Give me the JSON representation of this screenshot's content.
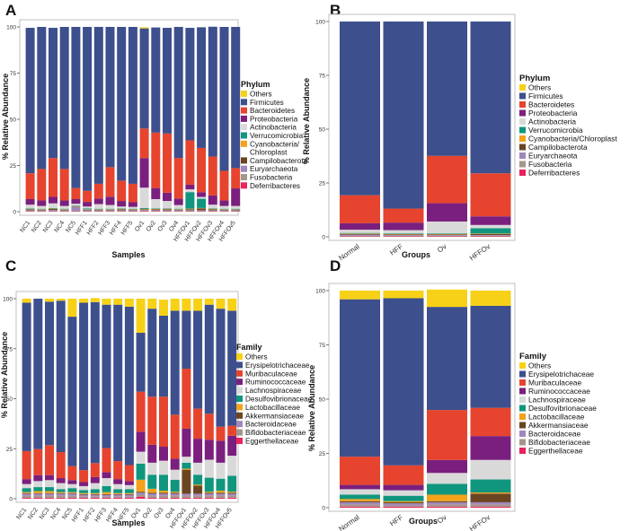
{
  "colors": {
    "Others": "#F7D117",
    "Firmicutes": "#3D4F8C",
    "Bacteroidetes": "#E6442E",
    "Proteobacteria": "#7B1F7E",
    "Actinobacteria": "#D9D9D9",
    "Verrucomicrobia": "#10967E",
    "Cyanobacteria/Chloroplast": "#F2A31B",
    "Campilobacterota": "#6B4521",
    "Euryarchaeota": "#A087BC",
    "Fusobacteria": "#A4968A",
    "Deferribacteres": "#E8235D",
    "Erysipelotrichaceae": "#3D4F8C",
    "Muribaculaceae": "#E6442E",
    "Ruminococcaceae": "#7B1F7E",
    "Lachnospiraceae": "#D9D9D9",
    "Desulfovibrionaceae": "#10967E",
    "Lactobacillaceae": "#F2A31B",
    "Akkermansiaceae": "#6B4521",
    "Bacteroidaceae": "#A087BC",
    "Bifidobacteriaceae": "#A4968A",
    "Eggerthellaceae": "#E8235D"
  },
  "chart_data": [
    {
      "panel": "A",
      "type": "bar",
      "stacked": true,
      "xlabel": "Samples",
      "ylabel": "% Relative Abundance",
      "ylim": [
        0,
        100
      ],
      "yticks": [
        "0",
        "25",
        "50",
        "75",
        "100"
      ],
      "legend_title": "Phylum",
      "legend": [
        "Others",
        "Firmicutes",
        "Bacteroidetes",
        "Proteobacteria",
        "Actinobacteria",
        "Verrucomicrobia",
        "Cyanobacteria/",
        "Chloroplast",
        "Campilobacterota",
        "Euryarchaeota",
        "Fusobacteria",
        "Deferribacteres"
      ],
      "legend_colors": [
        "Others",
        "Firmicutes",
        "Bacteroidetes",
        "Proteobacteria",
        "Actinobacteria",
        "Verrucomicrobia",
        "Cyanobacteria/Chloroplast",
        "",
        "Campilobacterota",
        "Euryarchaeota",
        "Fusobacteria",
        "Deferribacteres"
      ],
      "stack_order": [
        "Deferribacteres",
        "Fusobacteria",
        "Euryarchaeota",
        "Campilobacterota",
        "Cyanobacteria/Chloroplast",
        "Verrucomicrobia",
        "Actinobacteria",
        "Proteobacteria",
        "Bacteroidetes",
        "Firmicutes",
        "Others"
      ],
      "categories": [
        "NC1",
        "NC2",
        "NC3",
        "NC4",
        "NC5",
        "HFF1",
        "HFF2",
        "HFF3",
        "HFF4",
        "HFF5",
        "Ov1",
        "Ov2",
        "Ov3",
        "Ov4",
        "HFFOv1",
        "HFFOv2",
        "HFFOv3",
        "HFFOv4",
        "HFFOv5"
      ],
      "series": [
        {
          "name": "Deferribacteres",
          "values": [
            0.2,
            0.2,
            0.2,
            0.2,
            0.2,
            0.2,
            0.2,
            0.2,
            0.2,
            0.2,
            0.3,
            0.2,
            0.2,
            0.2,
            0.2,
            0.2,
            0.2,
            0.2,
            0.2
          ]
        },
        {
          "name": "Fusobacteria",
          "values": [
            0.3,
            0.3,
            0.3,
            0.3,
            0.3,
            0.3,
            0.3,
            0.3,
            0.3,
            0.3,
            0.3,
            0.3,
            0.3,
            0.3,
            0.3,
            0.3,
            0.3,
            0.3,
            0.3
          ]
        },
        {
          "name": "Euryarchaeota",
          "values": [
            0.3,
            0.3,
            0.5,
            0.3,
            2.0,
            0.3,
            0.3,
            0.3,
            0.3,
            0.3,
            0.3,
            0.3,
            0.3,
            0.3,
            0.3,
            0.3,
            0.3,
            0.3,
            0.3
          ]
        },
        {
          "name": "Campilobacterota",
          "values": [
            0.5,
            0.3,
            0.5,
            0.3,
            0.3,
            0.3,
            0.3,
            0.3,
            0.5,
            0.3,
            0.3,
            0.5,
            0.5,
            0.3,
            0.5,
            1.0,
            0.5,
            0.3,
            0.3
          ]
        },
        {
          "name": "Cyanobacteria/Chloroplast",
          "values": [
            0.2,
            0.2,
            0.2,
            0.2,
            0.2,
            0.2,
            0.2,
            0.2,
            0.2,
            0.2,
            0.3,
            0.2,
            0.2,
            0.2,
            0.3,
            0.2,
            0.2,
            0.2,
            0.2
          ]
        },
        {
          "name": "Verrucomicrobia",
          "values": [
            0.3,
            0.3,
            0.3,
            0.3,
            0.3,
            0.5,
            0.3,
            0.3,
            0.3,
            0.3,
            0.5,
            0.3,
            0.3,
            0.3,
            9.0,
            5.0,
            0.3,
            0.3,
            0.3
          ]
        },
        {
          "name": "Actinobacteria",
          "values": [
            2.0,
            1.5,
            2.5,
            1.5,
            1.0,
            1.0,
            2.5,
            2.0,
            1.0,
            1.0,
            11.0,
            5.0,
            4.0,
            2.0,
            1.5,
            1.0,
            2.0,
            1.5,
            1.5
          ]
        },
        {
          "name": "Proteobacteria",
          "values": [
            3.0,
            3.0,
            3.5,
            3.0,
            2.5,
            2.5,
            3.0,
            4.5,
            3.0,
            2.5,
            16.0,
            6.0,
            4.5,
            3.5,
            2.5,
            2.5,
            5.0,
            3.0,
            9.5
          ]
        },
        {
          "name": "Bacteroidetes",
          "values": [
            14.0,
            17.0,
            21.0,
            17.0,
            6.0,
            6.0,
            8.0,
            16.0,
            11.0,
            10.0,
            16.0,
            30.0,
            32.0,
            22.0,
            24.0,
            24.0,
            21.0,
            16.0,
            11.0
          ]
        },
        {
          "name": "Firmicutes",
          "values": [
            78.7,
            76.9,
            70.5,
            76.9,
            87.2,
            88.7,
            84.9,
            75.9,
            83.2,
            84.9,
            54.2,
            56.9,
            57.2,
            70.9,
            60.9,
            65.3,
            70.3,
            77.9,
            76.4
          ]
        },
        {
          "name": "Others",
          "values": [
            0.0,
            0.0,
            0.0,
            0.0,
            0.0,
            0.0,
            0.0,
            0.0,
            0.0,
            0.0,
            0.6,
            0.0,
            0.0,
            0.0,
            0.0,
            0.0,
            0.0,
            0.0,
            0.0
          ]
        }
      ]
    },
    {
      "panel": "B",
      "type": "bar",
      "stacked": true,
      "xlabel": "Groups",
      "ylabel": "% Relative Abundance",
      "ylim": [
        0,
        100
      ],
      "yticks": [
        "0",
        "25",
        "50",
        "75",
        "100"
      ],
      "legend_title": "Phylum",
      "legend": [
        "Others",
        "Firmicutes",
        "Bacteroidetes",
        "Proteobacteria",
        "Actinobacteria",
        "Verrucomicrobia",
        "Cyanobacteria/Chloroplast",
        "Campilobacterota",
        "Euryarchaeota",
        "Fusobacteria",
        "Deferribacteres"
      ],
      "legend_colors": [
        "Others",
        "Firmicutes",
        "Bacteroidetes",
        "Proteobacteria",
        "Actinobacteria",
        "Verrucomicrobia",
        "Cyanobacteria/Chloroplast",
        "Campilobacterota",
        "Euryarchaeota",
        "Fusobacteria",
        "Deferribacteres"
      ],
      "stack_order": [
        "Deferribacteres",
        "Fusobacteria",
        "Euryarchaeota",
        "Campilobacterota",
        "Cyanobacteria/Chloroplast",
        "Verrucomicrobia",
        "Actinobacteria",
        "Proteobacteria",
        "Bacteroidetes",
        "Firmicutes",
        "Others"
      ],
      "categories": [
        "Normal",
        "HFF",
        "Ov",
        "HFFOv"
      ],
      "series": [
        {
          "name": "Deferribacteres",
          "values": [
            0.2,
            0.2,
            0.2,
            0.2
          ]
        },
        {
          "name": "Fusobacteria",
          "values": [
            0.3,
            0.3,
            0.3,
            0.3
          ]
        },
        {
          "name": "Euryarchaeota",
          "values": [
            0.5,
            0.3,
            0.3,
            0.3
          ]
        },
        {
          "name": "Campilobacterota",
          "values": [
            0.3,
            0.3,
            0.3,
            0.5
          ]
        },
        {
          "name": "Cyanobacteria/Chloroplast",
          "values": [
            0.2,
            0.2,
            0.2,
            0.2
          ]
        },
        {
          "name": "Verrucomicrobia",
          "values": [
            0.3,
            0.3,
            0.3,
            2.5
          ]
        },
        {
          "name": "Actinobacteria",
          "values": [
            1.5,
            1.5,
            5.5,
            1.5
          ]
        },
        {
          "name": "Proteobacteria",
          "values": [
            3.0,
            3.5,
            8.5,
            4.0
          ]
        },
        {
          "name": "Bacteroidetes",
          "values": [
            13.0,
            6.5,
            22.0,
            20.0
          ]
        },
        {
          "name": "Firmicutes",
          "values": [
            80.7,
            86.9,
            62.4,
            70.5
          ]
        },
        {
          "name": "Others",
          "values": [
            0.0,
            0.0,
            0.0,
            0.0
          ]
        }
      ]
    },
    {
      "panel": "C",
      "type": "bar",
      "stacked": true,
      "xlabel": "Samples",
      "ylabel": "% Relative Abundance",
      "ylim": [
        0,
        100
      ],
      "yticks": [
        "0",
        "25",
        "50",
        "75",
        "100"
      ],
      "legend_title": "Family",
      "legend": [
        "Others",
        "Erysipelotrichaceae",
        "Muribaculaceae",
        "Ruminococcaceae",
        "Lachnospiraceae",
        "Desulfovibrionaceae",
        "Lactobacillaceae",
        "Akkermansiaceae",
        "Bacteroidaceae",
        "Bifidobacteriaceae",
        "Eggerthellaceae"
      ],
      "legend_colors": [
        "Others",
        "Erysipelotrichaceae",
        "Muribaculaceae",
        "Ruminococcaceae",
        "Lachnospiraceae",
        "Desulfovibrionaceae",
        "Lactobacillaceae",
        "Akkermansiaceae",
        "Bacteroidaceae",
        "Bifidobacteriaceae",
        "Eggerthellaceae"
      ],
      "stack_order": [
        "Eggerthellaceae",
        "Bifidobacteriaceae",
        "Bacteroidaceae",
        "Akkermansiaceae",
        "Lactobacillaceae",
        "Desulfovibrionaceae",
        "Lachnospiraceae",
        "Ruminococcaceae",
        "Muribaculaceae",
        "Erysipelotrichaceae",
        "Others"
      ],
      "categories": [
        "NC1",
        "NC2",
        "NC3",
        "NC4",
        "NC5",
        "HFF1",
        "HFF2",
        "HFF3",
        "HFF4",
        "HFF5",
        "Ov1",
        "Ov2",
        "Ov3",
        "Ov4",
        "HFFOv1",
        "HFFOv2",
        "HFFOv3",
        "HFFOv4",
        "HFFOv5"
      ],
      "series": [
        {
          "name": "Eggerthellaceae",
          "values": [
            0.5,
            0.5,
            0.5,
            0.5,
            0.5,
            0.5,
            0.5,
            0.5,
            0.5,
            0.5,
            1.0,
            0.5,
            0.5,
            0.5,
            0.5,
            0.5,
            0.5,
            0.5,
            0.5
          ]
        },
        {
          "name": "Bifidobacteriaceae",
          "values": [
            1.0,
            1.0,
            1.0,
            1.0,
            1.0,
            0.5,
            0.5,
            0.5,
            0.5,
            0.5,
            1.0,
            1.0,
            1.0,
            1.0,
            1.0,
            1.0,
            1.0,
            1.0,
            1.0
          ]
        },
        {
          "name": "Bacteroidaceae",
          "values": [
            1.0,
            1.0,
            1.0,
            1.0,
            1.0,
            1.0,
            1.0,
            1.0,
            1.0,
            1.0,
            1.0,
            1.0,
            1.0,
            1.0,
            1.0,
            1.0,
            1.0,
            1.0,
            1.0
          ]
        },
        {
          "name": "Akkermansiaceae",
          "values": [
            0.3,
            0.3,
            0.3,
            0.3,
            0.3,
            0.3,
            0.3,
            0.3,
            0.3,
            0.3,
            0.5,
            0.5,
            0.5,
            0.5,
            12.0,
            4.0,
            0.5,
            0.5,
            0.5
          ]
        },
        {
          "name": "Lactobacillaceae",
          "values": [
            0.5,
            1.0,
            1.0,
            0.5,
            0.5,
            0.5,
            0.5,
            1.0,
            0.5,
            0.5,
            6.0,
            2.0,
            1.0,
            0.5,
            0.5,
            0.5,
            0.5,
            1.0,
            0.5
          ]
        },
        {
          "name": "Desulfovibrionaceae",
          "values": [
            2.0,
            2.0,
            2.0,
            1.5,
            2.0,
            1.5,
            2.0,
            3.0,
            2.0,
            2.0,
            8.0,
            7.0,
            8.0,
            6.0,
            3.0,
            5.0,
            7.0,
            6.0,
            8.0
          ]
        },
        {
          "name": "Lachnospiraceae",
          "values": [
            2.0,
            3.0,
            3.5,
            3.0,
            2.0,
            2.0,
            3.0,
            4.0,
            2.5,
            2.0,
            6.0,
            6.0,
            7.0,
            5.0,
            3.0,
            6.0,
            9.0,
            8.0,
            10.0
          ]
        },
        {
          "name": "Ruminococcaceae",
          "values": [
            2.5,
            3.0,
            2.5,
            2.5,
            2.0,
            2.0,
            3.0,
            3.0,
            2.5,
            2.0,
            10.0,
            9.0,
            7.0,
            5.5,
            14.0,
            12.0,
            10.0,
            11.0,
            10.0
          ]
        },
        {
          "name": "Muribaculaceae",
          "values": [
            14.0,
            13.0,
            15.0,
            13.0,
            7.0,
            6.0,
            7.0,
            12.0,
            9.0,
            8.0,
            20.0,
            24.0,
            25.0,
            22.0,
            30.0,
            15.0,
            13.0,
            7.0,
            5.0
          ]
        },
        {
          "name": "Erysipelotrichaceae",
          "values": [
            74.2,
            75.2,
            71.7,
            75.7,
            74.7,
            83.7,
            80.5,
            71.7,
            78.2,
            79.2,
            29.5,
            44.0,
            40.5,
            52.0,
            29.0,
            49.0,
            54.5,
            59.0,
            57.5
          ]
        },
        {
          "name": "Others",
          "values": [
            2.0,
            0.0,
            1.5,
            1.0,
            9.0,
            2.0,
            2.0,
            3.0,
            3.0,
            4.0,
            17.0,
            5.0,
            8.0,
            6.0,
            6.0,
            6.0,
            3.0,
            5.0,
            6.0
          ]
        }
      ]
    },
    {
      "panel": "D",
      "type": "bar",
      "stacked": true,
      "xlabel": "Groups",
      "ylabel": "% Relative Abundance",
      "ylim": [
        0,
        100
      ],
      "yticks": [
        "0",
        "25",
        "50",
        "75",
        "100"
      ],
      "legend_title": "Family",
      "legend": [
        "Others",
        "Erysipelotrichaceae",
        "Muribaculaceae",
        "Ruminococcaceae",
        "Lachnospiraceae",
        "Desulfovibrionaceae",
        "Lactobacillaceae",
        "Akkermansiaceae",
        "Bacteroidaceae",
        "Bifidobacteriaceae",
        "Eggerthellaceae"
      ],
      "legend_colors": [
        "Others",
        "Erysipelotrichaceae",
        "Muribaculaceae",
        "Ruminococcaceae",
        "Lachnospiraceae",
        "Desulfovibrionaceae",
        "Lactobacillaceae",
        "Akkermansiaceae",
        "Bacteroidaceae",
        "Bifidobacteriaceae",
        "Eggerthellaceae"
      ],
      "stack_order": [
        "Eggerthellaceae",
        "Bifidobacteriaceae",
        "Bacteroidaceae",
        "Akkermansiaceae",
        "Lactobacillaceae",
        "Desulfovibrionaceae",
        "Lachnospiraceae",
        "Ruminococcaceae",
        "Muribaculaceae",
        "Erysipelotrichaceae",
        "Others"
      ],
      "categories": [
        "Normal",
        "HFF",
        "Ov",
        "HFFOv"
      ],
      "series": [
        {
          "name": "Eggerthellaceae",
          "values": [
            0.5,
            0.5,
            0.5,
            0.5
          ]
        },
        {
          "name": "Bifidobacteriaceae",
          "values": [
            1.0,
            0.5,
            1.0,
            1.0
          ]
        },
        {
          "name": "Bacteroidaceae",
          "values": [
            1.0,
            1.0,
            1.0,
            1.0
          ]
        },
        {
          "name": "Akkermansiaceae",
          "values": [
            0.5,
            0.5,
            0.5,
            4.0
          ]
        },
        {
          "name": "Lactobacillaceae",
          "values": [
            1.0,
            0.5,
            3.0,
            0.5
          ]
        },
        {
          "name": "Desulfovibrionaceae",
          "values": [
            2.0,
            2.5,
            5.0,
            6.0
          ]
        },
        {
          "name": "Lachnospiraceae",
          "values": [
            2.5,
            2.5,
            5.0,
            9.0
          ]
        },
        {
          "name": "Ruminococcaceae",
          "values": [
            2.0,
            2.5,
            6.0,
            11.0
          ]
        },
        {
          "name": "Muribaculaceae",
          "values": [
            13.0,
            9.0,
            23.0,
            13.0
          ]
        },
        {
          "name": "Erysipelotrichaceae",
          "values": [
            72.5,
            77.0,
            47.5,
            47.0
          ]
        },
        {
          "name": "Others",
          "values": [
            4.0,
            3.5,
            8.0,
            7.0
          ]
        }
      ]
    }
  ]
}
